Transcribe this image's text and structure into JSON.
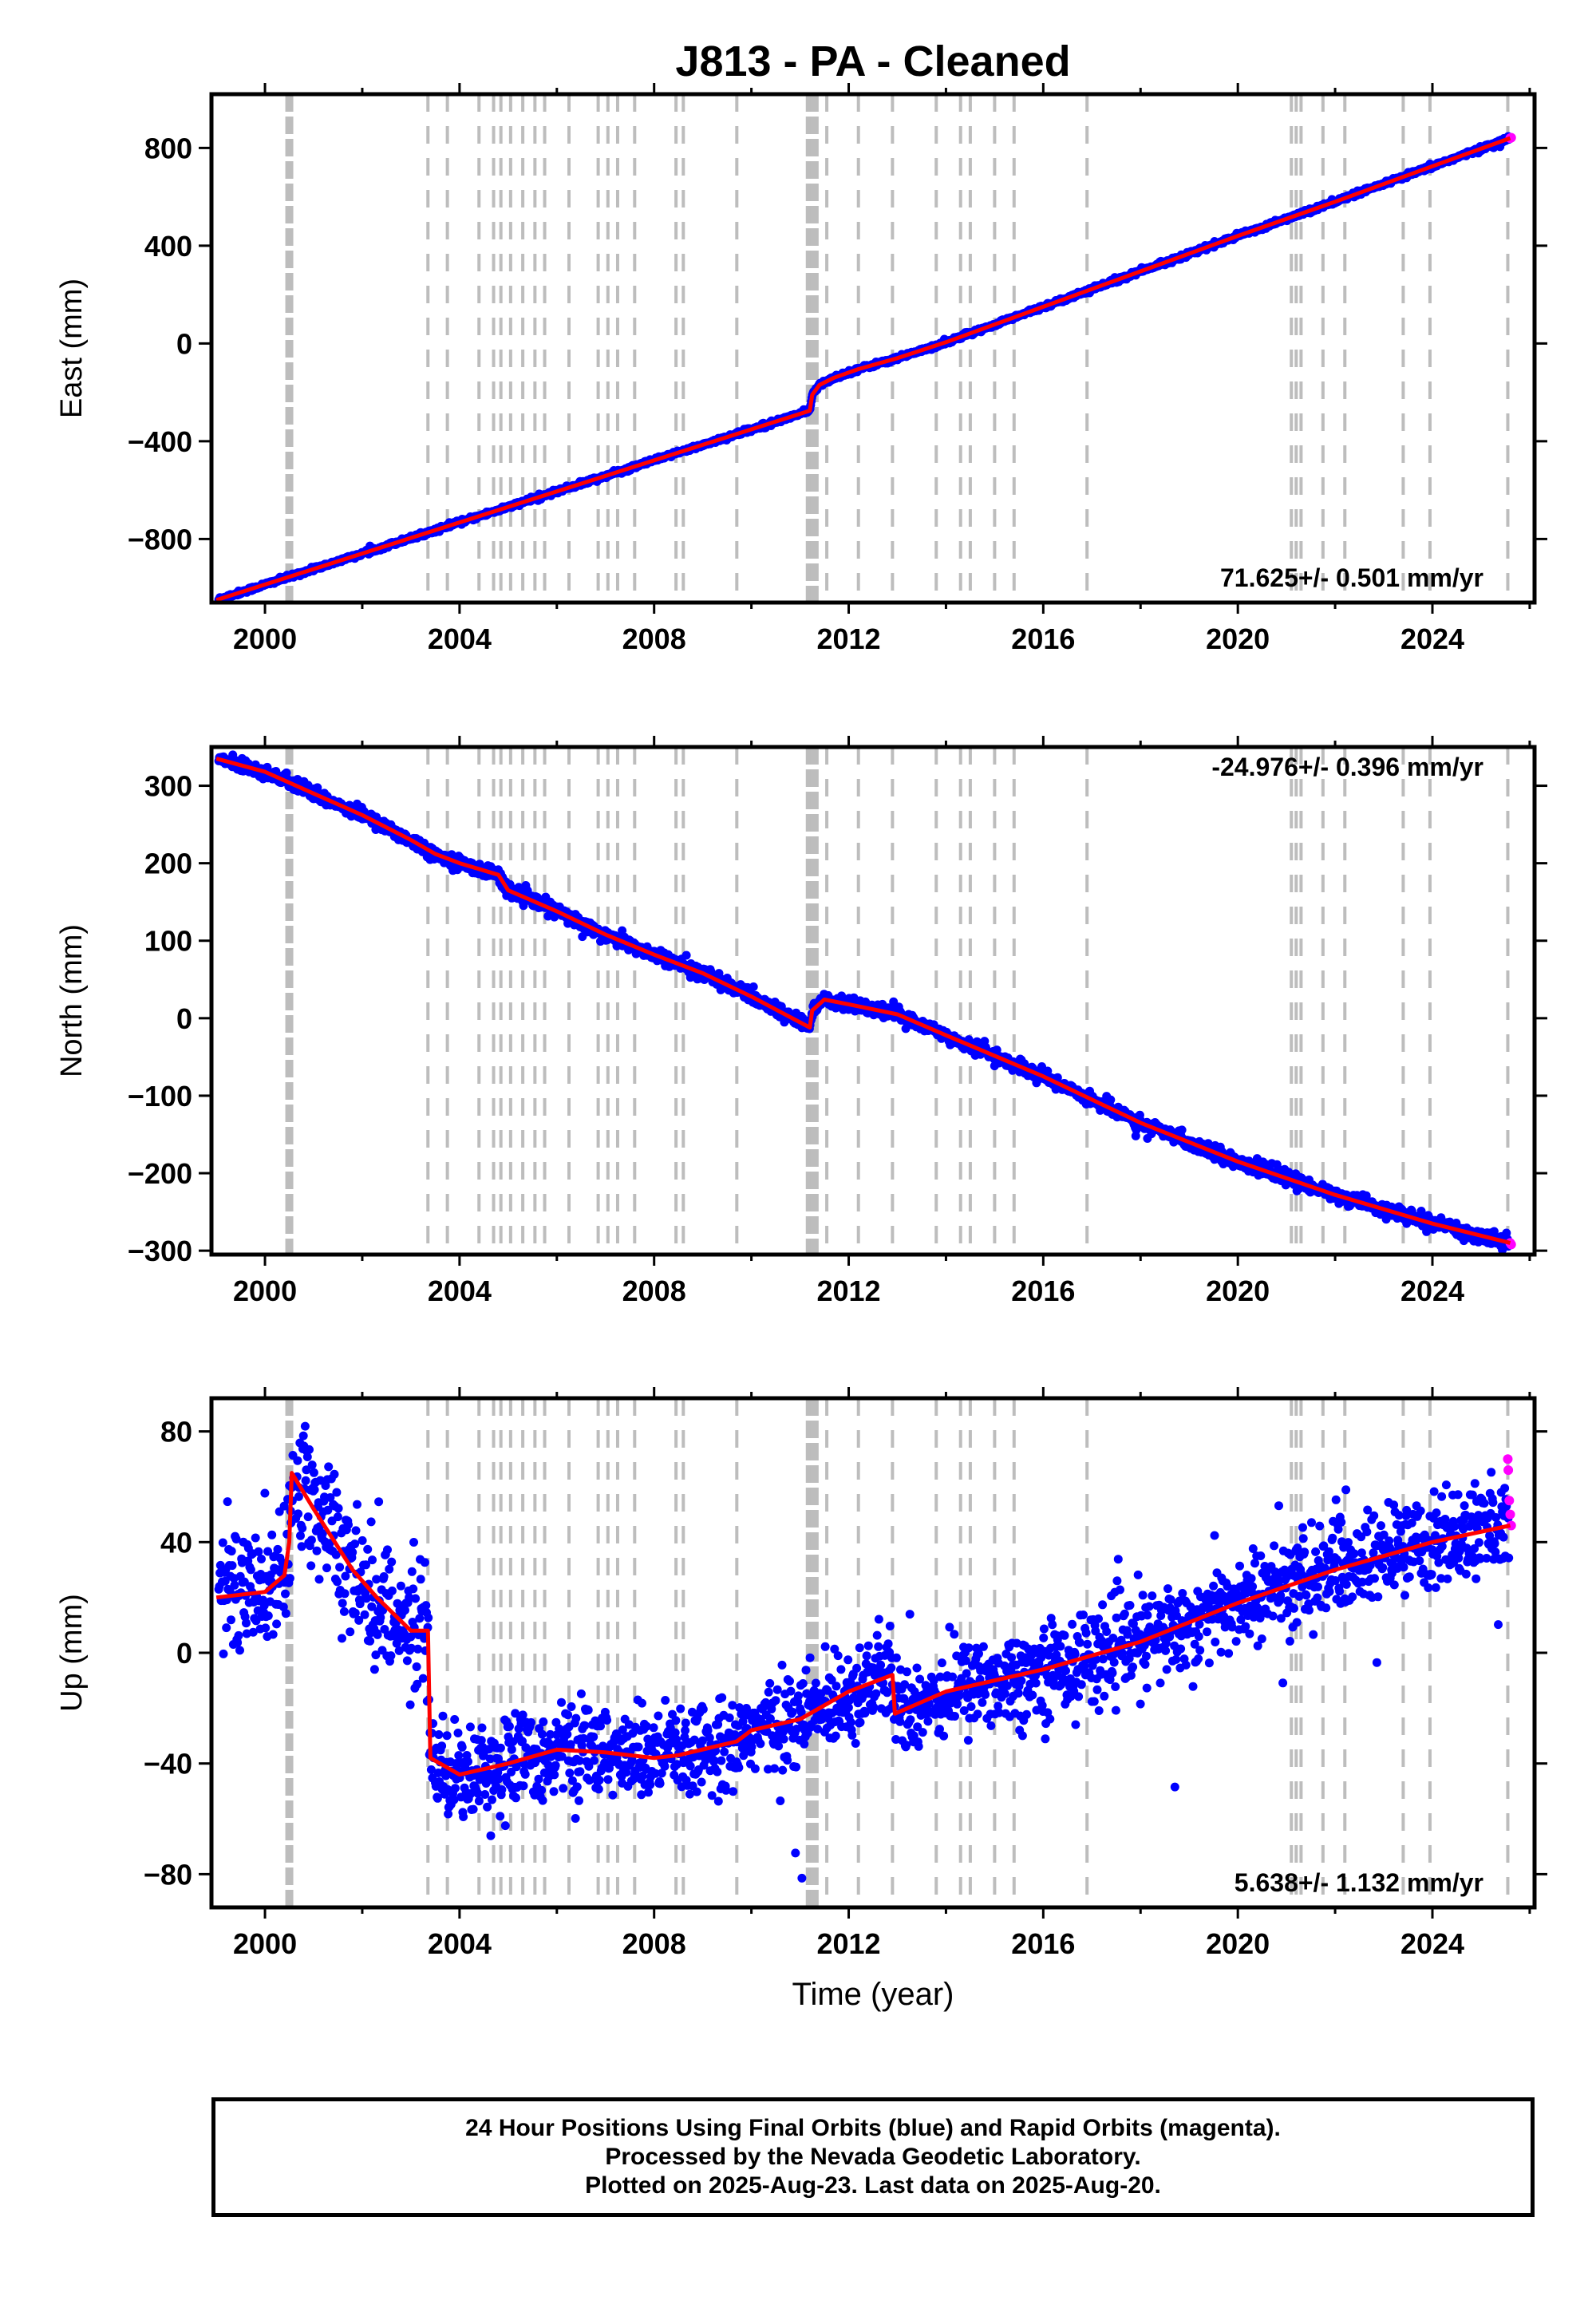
{
  "chart_data": {
    "type": "scatter",
    "title": "J813  - PA - Cleaned",
    "xlabel": "Time (year)",
    "xlim": [
      1998.9,
      2026.1
    ],
    "xticks": [
      2000,
      2004,
      2008,
      2012,
      2016,
      2020,
      2024
    ],
    "xtick_labels": [
      "2000",
      "2004",
      "2008",
      "2012",
      "2016",
      "2020",
      "2024"
    ],
    "colors": {
      "final": "#0000ff",
      "rapid": "#ff00ff",
      "model": "#ff0000",
      "break_line": "#bdbdbd"
    },
    "break_lines": [
      2000.5,
      2003.35,
      2003.75,
      2004.4,
      2004.7,
      2004.85,
      2005.05,
      2005.3,
      2005.55,
      2005.75,
      2006.25,
      2006.85,
      2007.05,
      2007.25,
      2007.6,
      2008.45,
      2008.6,
      2009.7,
      2011.2,
      2011.3,
      2011.55,
      2012.2,
      2012.9,
      2013.8,
      2014.3,
      2014.5,
      2015.0,
      2015.4,
      2016.9,
      2021.1,
      2021.2,
      2021.3,
      2021.75,
      2022.2,
      2023.4,
      2023.95,
      2025.55
    ],
    "panels": [
      {
        "id": "east",
        "ylabel": "East (mm)",
        "ylim": [
          -1060,
          1020
        ],
        "yticks": [
          -800,
          -400,
          0,
          400,
          800
        ],
        "ytick_labels": [
          "−800",
          "−400",
          "0",
          "400",
          "800"
        ],
        "rate_label": "71.625+/- 0.501 mm/yr",
        "rate_position": "bottom-right",
        "model": [
          [
            1999.0,
            -1050
          ],
          [
            2011.2,
            -275
          ],
          [
            2011.25,
            -210
          ],
          [
            2011.4,
            -170
          ],
          [
            2011.7,
            -140
          ],
          [
            2012.2,
            -105
          ],
          [
            2013.0,
            -60
          ],
          [
            2014.0,
            5
          ],
          [
            2016.0,
            150
          ],
          [
            2018.0,
            295
          ],
          [
            2020.0,
            440
          ],
          [
            2022.0,
            580
          ],
          [
            2024.0,
            725
          ],
          [
            2025.6,
            840
          ]
        ],
        "rapid_points": [
          [
            2025.6,
            840
          ],
          [
            2025.62,
            842
          ]
        ],
        "scatter_mm": 6
      },
      {
        "id": "north",
        "ylabel": "North (mm)",
        "ylim": [
          -305,
          350
        ],
        "yticks": [
          -300,
          -200,
          -100,
          0,
          100,
          200,
          300
        ],
        "ytick_labels": [
          "−300",
          "−200",
          "−100",
          "0",
          "100",
          "200",
          "300"
        ],
        "rate_label": "-24.976+/- 0.396 mm/yr",
        "rate_position": "top-right",
        "model": [
          [
            1999.0,
            335
          ],
          [
            2000.0,
            318
          ],
          [
            2001.0,
            290
          ],
          [
            2002.0,
            262
          ],
          [
            2003.0,
            230
          ],
          [
            2003.5,
            212
          ],
          [
            2004.0,
            200
          ],
          [
            2004.8,
            185
          ],
          [
            2005.0,
            165
          ],
          [
            2006.0,
            138
          ],
          [
            2007.0,
            108
          ],
          [
            2008.0,
            82
          ],
          [
            2009.0,
            58
          ],
          [
            2010.0,
            28
          ],
          [
            2011.2,
            -12
          ],
          [
            2011.25,
            10
          ],
          [
            2011.5,
            24
          ],
          [
            2012.0,
            18
          ],
          [
            2013.0,
            5
          ],
          [
            2014.0,
            -22
          ],
          [
            2016.0,
            -75
          ],
          [
            2018.0,
            -135
          ],
          [
            2020.0,
            -185
          ],
          [
            2022.0,
            -228
          ],
          [
            2024.0,
            -265
          ],
          [
            2025.6,
            -290
          ]
        ],
        "rapid_points": [
          [
            2025.6,
            -290
          ],
          [
            2025.62,
            -292
          ]
        ],
        "scatter_mm": 6
      },
      {
        "id": "up",
        "ylabel": "Up (mm)",
        "ylim": [
          -92,
          92
        ],
        "yticks": [
          -80,
          -40,
          0,
          40,
          80
        ],
        "ytick_labels": [
          "−80",
          "−40",
          "0",
          "40",
          "80"
        ],
        "rate_label": "5.638+/- 1.132 mm/yr",
        "rate_position": "bottom-right",
        "model": [
          [
            1999.0,
            20
          ],
          [
            2000.0,
            22
          ],
          [
            2000.4,
            28
          ],
          [
            2000.5,
            40
          ],
          [
            2000.55,
            65
          ],
          [
            2001.0,
            52
          ],
          [
            2001.8,
            30
          ],
          [
            2002.3,
            20
          ],
          [
            2003.0,
            8
          ],
          [
            2003.35,
            8
          ],
          [
            2003.4,
            -38
          ],
          [
            2004.0,
            -44
          ],
          [
            2005.0,
            -40
          ],
          [
            2006.0,
            -35
          ],
          [
            2007.0,
            -36
          ],
          [
            2008.0,
            -38
          ],
          [
            2008.5,
            -37
          ],
          [
            2009.7,
            -32
          ],
          [
            2010.0,
            -28
          ],
          [
            2011.0,
            -24
          ],
          [
            2012.0,
            -14
          ],
          [
            2012.9,
            -8
          ],
          [
            2012.95,
            -22
          ],
          [
            2014.0,
            -14
          ],
          [
            2016.0,
            -6
          ],
          [
            2018.0,
            4
          ],
          [
            2020.0,
            18
          ],
          [
            2022.0,
            30
          ],
          [
            2024.0,
            40
          ],
          [
            2025.6,
            46
          ]
        ],
        "rapid_points": [
          [
            2025.55,
            70
          ],
          [
            2025.56,
            66
          ],
          [
            2025.58,
            55
          ],
          [
            2025.6,
            50
          ],
          [
            2025.62,
            46
          ]
        ],
        "scatter_mm": 12
      }
    ]
  },
  "caption": {
    "line1": "24 Hour Positions Using Final Orbits (blue) and Rapid Orbits (magenta).",
    "line2": "Processed by the Nevada Geodetic Laboratory.",
    "line3": "Plotted on 2025-Aug-23. Last data on 2025-Aug-20."
  }
}
